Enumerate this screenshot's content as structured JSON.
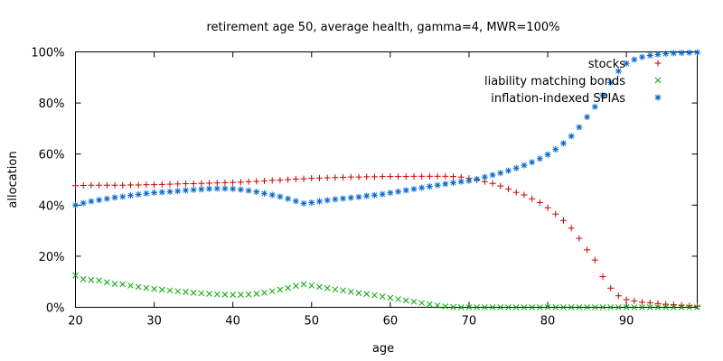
{
  "chart_data": {
    "type": "scatter",
    "title": "retirement age 50, average health, gamma=4, MWR=100%",
    "xlabel": "age",
    "ylabel": "allocation",
    "xlim": [
      20,
      99
    ],
    "ylim": [
      0,
      100
    ],
    "x_ticks": [
      "20",
      "30",
      "40",
      "50",
      "60",
      "70",
      "80",
      "90"
    ],
    "y_ticks": [
      "0%",
      "20%",
      "40%",
      "60%",
      "80%",
      "100%"
    ],
    "grid": false,
    "legend_position": "top-right",
    "series": [
      {
        "name": "stocks",
        "marker": "plus",
        "color": "#cc0000",
        "x": [
          20,
          21,
          22,
          23,
          24,
          25,
          26,
          27,
          28,
          29,
          30,
          31,
          32,
          33,
          34,
          35,
          36,
          37,
          38,
          39,
          40,
          41,
          42,
          43,
          44,
          45,
          46,
          47,
          48,
          49,
          50,
          51,
          52,
          53,
          54,
          55,
          56,
          57,
          58,
          59,
          60,
          61,
          62,
          63,
          64,
          65,
          66,
          67,
          68,
          69,
          70,
          71,
          72,
          73,
          74,
          75,
          76,
          77,
          78,
          79,
          80,
          81,
          82,
          83,
          84,
          85,
          86,
          87,
          88,
          89,
          90,
          91,
          92,
          93,
          94,
          95,
          96,
          97,
          98,
          99
        ],
        "y": [
          47.6,
          47.7,
          47.8,
          47.8,
          47.8,
          47.8,
          47.8,
          47.9,
          47.9,
          48.0,
          48.0,
          48.1,
          48.2,
          48.3,
          48.4,
          48.4,
          48.5,
          48.6,
          48.7,
          48.8,
          48.9,
          49.0,
          49.2,
          49.3,
          49.5,
          49.7,
          49.8,
          50.0,
          50.2,
          50.3,
          50.5,
          50.6,
          50.7,
          50.8,
          50.9,
          51.0,
          51.0,
          51.1,
          51.1,
          51.2,
          51.2,
          51.2,
          51.2,
          51.3,
          51.3,
          51.3,
          51.3,
          51.3,
          51.2,
          51.0,
          50.5,
          49.9,
          49.2,
          48.5,
          47.5,
          46.3,
          45.0,
          44.0,
          42.5,
          41.0,
          39.0,
          36.5,
          34.0,
          31.0,
          27.0,
          22.5,
          18.5,
          12.0,
          7.5,
          4.5,
          3.0,
          2.5,
          2.0,
          1.8,
          1.5,
          1.2,
          1.0,
          0.8,
          0.6,
          0.4
        ]
      },
      {
        "name": "liability matching bonds",
        "marker": "cross",
        "color": "#00aa00",
        "x": [
          20,
          21,
          22,
          23,
          24,
          25,
          26,
          27,
          28,
          29,
          30,
          31,
          32,
          33,
          34,
          35,
          36,
          37,
          38,
          39,
          40,
          41,
          42,
          43,
          44,
          45,
          46,
          47,
          48,
          49,
          50,
          51,
          52,
          53,
          54,
          55,
          56,
          57,
          58,
          59,
          60,
          61,
          62,
          63,
          64,
          65,
          66,
          67,
          68,
          69,
          70,
          71,
          72,
          73,
          74,
          75,
          76,
          77,
          78,
          79,
          80,
          81,
          82,
          83,
          84,
          85,
          86,
          87,
          88,
          89,
          90,
          91,
          92,
          93,
          94,
          95,
          96,
          97,
          98,
          99
        ],
        "y": [
          12.5,
          11.0,
          10.7,
          10.5,
          9.8,
          9.2,
          9.0,
          8.5,
          8.0,
          7.6,
          7.2,
          6.9,
          6.6,
          6.3,
          6.0,
          5.7,
          5.5,
          5.3,
          5.1,
          5.0,
          4.9,
          4.9,
          5.0,
          5.3,
          5.7,
          6.3,
          6.9,
          7.6,
          8.4,
          9.0,
          8.5,
          8.0,
          7.5,
          7.0,
          6.6,
          6.1,
          5.6,
          5.2,
          4.7,
          4.2,
          3.7,
          3.2,
          2.7,
          2.2,
          1.7,
          1.2,
          0.7,
          0.3,
          0.1,
          0.0,
          0.0,
          0.0,
          0.0,
          0.0,
          0.0,
          0.0,
          0.0,
          0.0,
          0.0,
          0.0,
          0.0,
          0.0,
          0.0,
          0.0,
          0.0,
          0.0,
          0.0,
          0.0,
          0.0,
          0.0,
          0.0,
          0.0,
          0.0,
          0.0,
          0.0,
          0.0,
          0.0,
          0.0,
          0.0,
          0.0
        ]
      },
      {
        "name": "inflation-indexed SPIAs",
        "marker": "star",
        "color": "#0066cc",
        "x": [
          20,
          21,
          22,
          23,
          24,
          25,
          26,
          27,
          28,
          29,
          30,
          31,
          32,
          33,
          34,
          35,
          36,
          37,
          38,
          39,
          40,
          41,
          42,
          43,
          44,
          45,
          46,
          47,
          48,
          49,
          50,
          51,
          52,
          53,
          54,
          55,
          56,
          57,
          58,
          59,
          60,
          61,
          62,
          63,
          64,
          65,
          66,
          67,
          68,
          69,
          70,
          71,
          72,
          73,
          74,
          75,
          76,
          77,
          78,
          79,
          80,
          81,
          82,
          83,
          84,
          85,
          86,
          87,
          88,
          89,
          90,
          91,
          92,
          93,
          94,
          95,
          96,
          97,
          98,
          99
        ],
        "y": [
          40.0,
          40.8,
          41.5,
          42.0,
          42.5,
          43.0,
          43.3,
          43.8,
          44.2,
          44.6,
          44.9,
          45.1,
          45.3,
          45.5,
          45.8,
          46.0,
          46.2,
          46.4,
          46.5,
          46.5,
          46.4,
          46.1,
          45.7,
          45.2,
          44.6,
          44.0,
          43.3,
          42.5,
          41.6,
          40.7,
          41.0,
          41.5,
          41.9,
          42.3,
          42.6,
          42.9,
          43.2,
          43.6,
          43.9,
          44.3,
          44.8,
          45.3,
          45.8,
          46.3,
          46.8,
          47.3,
          47.8,
          48.3,
          48.8,
          49.2,
          49.6,
          50.2,
          51.0,
          51.8,
          52.6,
          53.5,
          54.5,
          55.6,
          56.8,
          58.2,
          59.8,
          61.8,
          64.2,
          67.0,
          70.5,
          74.5,
          78.5,
          83.0,
          88.0,
          92.5,
          95.5,
          97.0,
          98.0,
          98.6,
          99.0,
          99.3,
          99.5,
          99.6,
          99.7,
          99.8
        ]
      }
    ]
  }
}
